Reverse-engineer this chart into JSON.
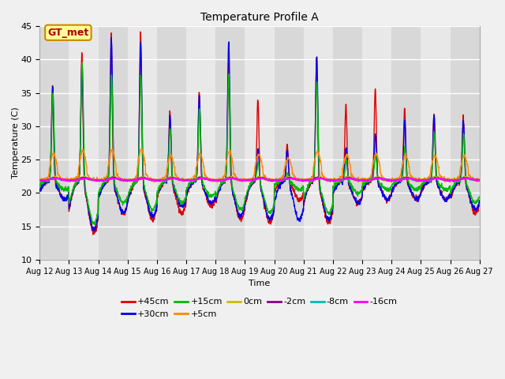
{
  "title": "Temperature Profile A",
  "xlabel": "Time",
  "ylabel": "Temperature (C)",
  "ylim": [
    10,
    45
  ],
  "ytick_values": [
    10,
    15,
    20,
    25,
    30,
    35,
    40,
    45
  ],
  "xtick_labels": [
    "Aug 12",
    "Aug 13",
    "Aug 14",
    "Aug 15",
    "Aug 16",
    "Aug 17",
    "Aug 18",
    "Aug 19",
    "Aug 20",
    "Aug 21",
    "Aug 22",
    "Aug 23",
    "Aug 24",
    "Aug 25",
    "Aug 26",
    "Aug 27"
  ],
  "background_color": "#f0f0f0",
  "plot_bg_color_top": "#e0e0e0",
  "plot_bg_color_bot": "#d8d8d8",
  "series_order": [
    "+45cm",
    "+30cm",
    "+15cm",
    "+5cm",
    "0cm",
    "-2cm",
    "-8cm",
    "-16cm"
  ],
  "series": {
    "+45cm": {
      "color": "#dd0000",
      "lw": 1.0
    },
    "+30cm": {
      "color": "#0000ee",
      "lw": 1.0
    },
    "+15cm": {
      "color": "#00bb00",
      "lw": 1.0
    },
    "+5cm": {
      "color": "#ff8800",
      "lw": 1.0
    },
    "0cm": {
      "color": "#ccbb00",
      "lw": 1.0
    },
    "-2cm": {
      "color": "#880088",
      "lw": 1.0
    },
    "-8cm": {
      "color": "#00bbbb",
      "lw": 1.0
    },
    "-16cm": {
      "color": "#ff00ff",
      "lw": 1.2
    }
  },
  "annotation_text": "GT_met",
  "annotation_color": "#aa0000",
  "annotation_bg": "#ffff99",
  "annotation_border": "#cc8800",
  "n_days": 15,
  "n_per_day": 144,
  "day_peak_maxes_45": [
    36,
    41.5,
    44,
    44.5,
    32.5,
    35.5,
    40,
    34.5,
    27.5,
    41,
    33.5,
    36,
    33,
    32,
    32
  ],
  "day_peak_maxes_30": [
    36,
    40,
    43.5,
    43,
    32,
    35,
    43,
    27,
    27,
    41,
    27,
    29,
    31,
    32,
    31
  ],
  "day_peak_maxes_15": [
    35,
    40,
    38,
    38,
    30,
    33,
    38,
    25,
    23,
    37,
    25,
    26,
    27,
    29,
    29
  ],
  "day_min_45": [
    19,
    14,
    17,
    16,
    17,
    18,
    16,
    15.5,
    19,
    15.5,
    18.5,
    19,
    19,
    19,
    17
  ],
  "day_min_30": [
    19,
    14.5,
    17,
    16.5,
    18,
    18.5,
    16.5,
    16,
    16,
    16,
    18.5,
    19,
    19,
    19,
    17.5
  ]
}
